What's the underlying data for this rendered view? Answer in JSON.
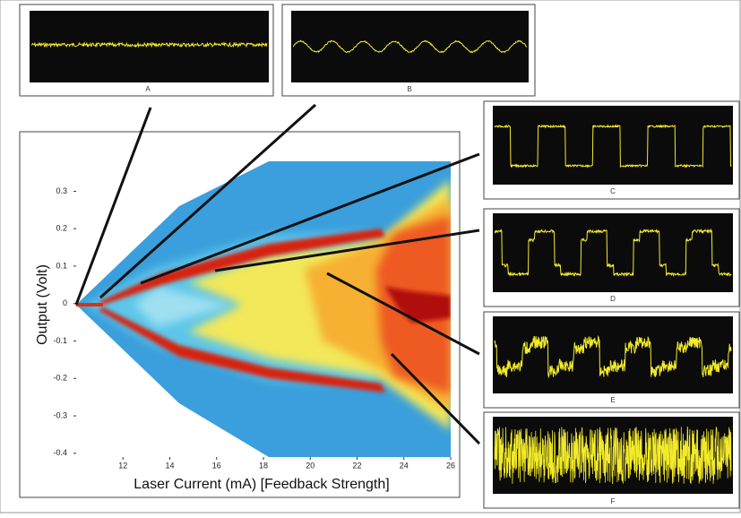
{
  "chart_data": {
    "type": "density",
    "xlabel": "Laser Current (mA) [Feedback Strength]",
    "ylabel": "Output (Volt)",
    "xlim": [
      10,
      26
    ],
    "xticks": [
      12,
      14,
      16,
      18,
      20,
      22,
      24,
      26
    ],
    "ylim": [
      -0.41,
      0.38
    ],
    "yticks": [
      -0.4,
      -0.3,
      -0.2,
      -0.1,
      0,
      0.1,
      0.2,
      0.3
    ]
  },
  "insets": [
    "A",
    "B",
    "C",
    "D",
    "E",
    "F"
  ]
}
